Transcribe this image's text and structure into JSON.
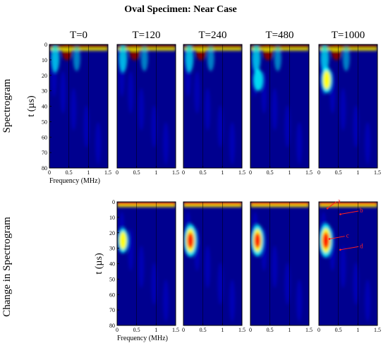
{
  "figure": {
    "title": "Oval Specimen:  Near Case",
    "row_labels": [
      "Spectrogram",
      "Change in Spectrogram"
    ]
  },
  "chart_data": {
    "type": "heatmap",
    "title": "Oval Specimen:  Near Case",
    "xlabel": "Frequency (MHz)",
    "ylabel": "t (µs)",
    "xticks": [
      "0",
      "0.5",
      "1",
      "1.5"
    ],
    "yticks": [
      "0",
      "10",
      "20",
      "30",
      "40",
      "50",
      "60",
      "70",
      "80"
    ],
    "xlim": [
      0,
      1.5
    ],
    "ylim": [
      80,
      0
    ],
    "colormap": [
      "#00008f",
      "#0000ff",
      "#00ffff",
      "#ffff00",
      "#ff0000",
      "#800000"
    ],
    "rows": [
      {
        "name": "Spectrogram",
        "panels": [
          {
            "label": "T=0",
            "features": [
              {
                "x": 0.45,
                "y": 3,
                "strength": 1.0
              }
            ]
          },
          {
            "label": "T=120",
            "features": [
              {
                "x": 0.45,
                "y": 3,
                "strength": 1.0
              }
            ]
          },
          {
            "label": "T=240",
            "features": [
              {
                "x": 0.45,
                "y": 3,
                "strength": 1.0
              }
            ]
          },
          {
            "label": "T=480",
            "features": [
              {
                "x": 0.45,
                "y": 3,
                "strength": 1.0
              },
              {
                "x": 0.2,
                "y": 23,
                "strength": 0.4
              }
            ]
          },
          {
            "label": "T=1000",
            "features": [
              {
                "x": 0.45,
                "y": 3,
                "strength": 1.0
              },
              {
                "x": 0.2,
                "y": 23,
                "strength": 0.6
              }
            ]
          }
        ]
      },
      {
        "name": "Change in Spectrogram",
        "panels": [
          {
            "label": "T=120",
            "features": [
              {
                "x": 0.15,
                "y": 25,
                "strength": 0.55
              }
            ]
          },
          {
            "label": "T=240",
            "features": [
              {
                "x": 0.18,
                "y": 25,
                "strength": 0.9
              }
            ]
          },
          {
            "label": "T=480",
            "features": [
              {
                "x": 0.18,
                "y": 25,
                "strength": 0.85
              }
            ]
          },
          {
            "label": "T=1000",
            "features": [
              {
                "x": 0.18,
                "y": 25,
                "strength": 0.95
              }
            ]
          }
        ]
      }
    ],
    "annotations": [
      {
        "text": "a",
        "panel": "T=1000 change",
        "x": 0.4,
        "y": 2
      },
      {
        "text": "b",
        "panel": "T=1000 change",
        "x": 0.5,
        "y": 8
      },
      {
        "text": "c",
        "panel": "T=1000 change",
        "x": 0.2,
        "y": 24
      },
      {
        "text": "d",
        "panel": "T=1000 change",
        "x": 0.45,
        "y": 31
      }
    ]
  }
}
